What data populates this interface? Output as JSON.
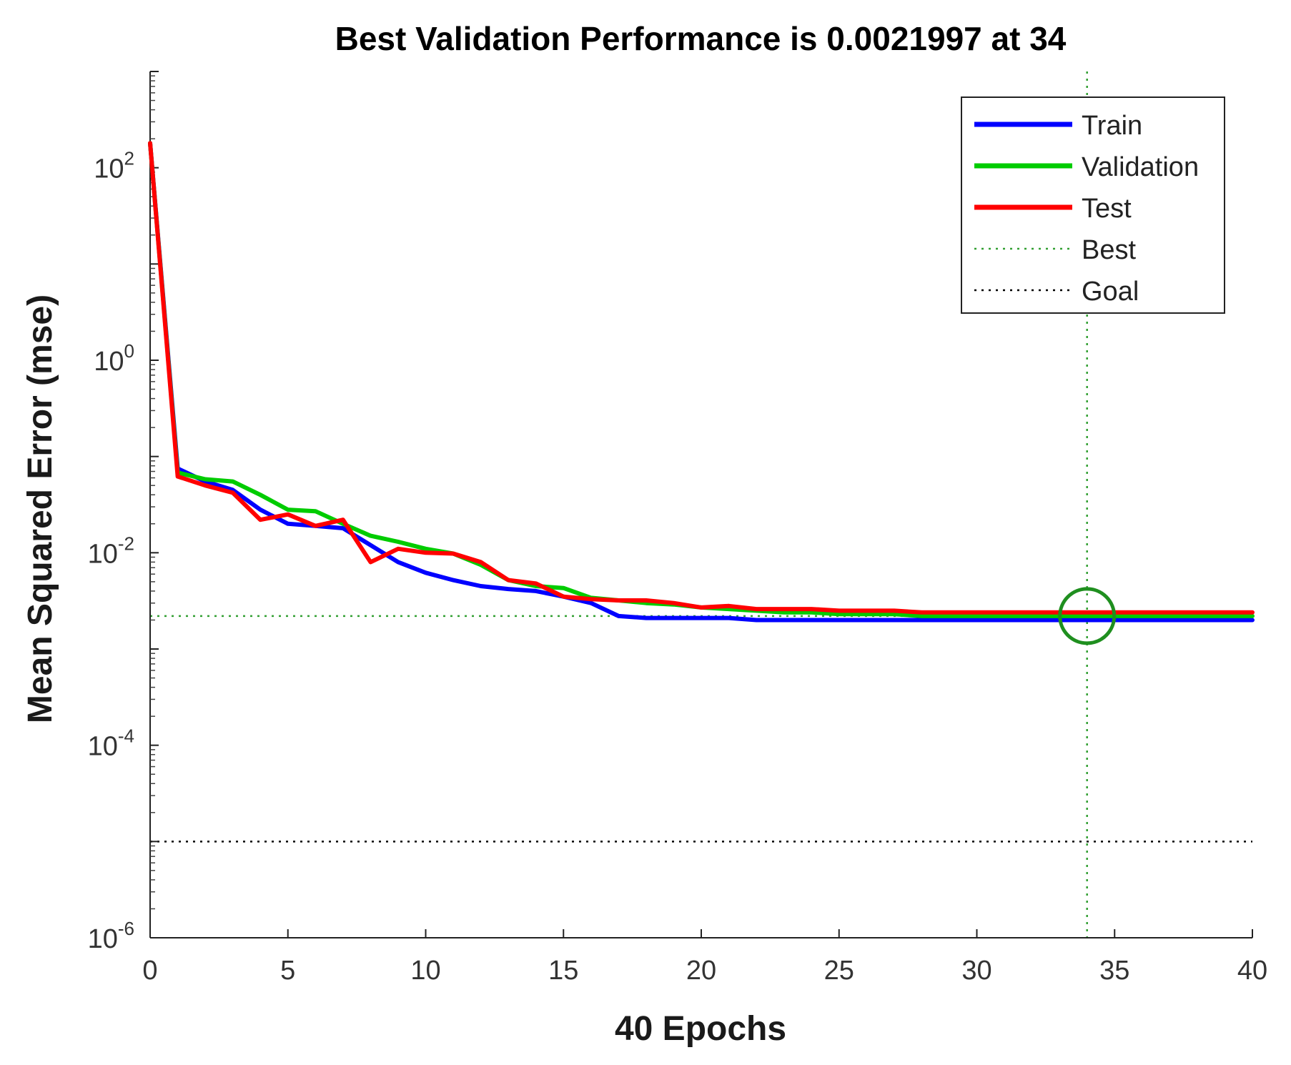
{
  "chart_data": {
    "type": "line",
    "title": "Best Validation Performance is 0.0021997 at 34",
    "xlabel": "40 Epochs",
    "ylabel": "Mean Squared Error  (mse)",
    "xlim": [
      0,
      40
    ],
    "ylim_log10": [
      -6,
      3
    ],
    "y_scale": "log",
    "xticks": [
      0,
      5,
      10,
      15,
      20,
      25,
      30,
      35,
      40
    ],
    "xtick_labels": [
      "0",
      "5",
      "10",
      "15",
      "20",
      "25",
      "30",
      "35",
      "40"
    ],
    "yticks": [
      {
        "exp": -6,
        "base": "10",
        "sup": "-6"
      },
      {
        "exp": -4,
        "base": "10",
        "sup": "-4"
      },
      {
        "exp": -2,
        "base": "10",
        "sup": "-2"
      },
      {
        "exp": 0,
        "base": "10",
        "sup": "0"
      },
      {
        "exp": 2,
        "base": "10",
        "sup": "2"
      }
    ],
    "x": [
      0,
      1,
      2,
      3,
      4,
      5,
      6,
      7,
      8,
      9,
      10,
      11,
      12,
      13,
      14,
      15,
      16,
      17,
      18,
      19,
      20,
      21,
      22,
      23,
      24,
      25,
      26,
      27,
      28,
      29,
      30,
      31,
      32,
      33,
      34,
      35,
      36,
      37,
      38,
      39,
      40
    ],
    "series": [
      {
        "name": "Train",
        "color": "#0000ff",
        "values": [
          180,
          0.075,
          0.055,
          0.045,
          0.028,
          0.02,
          0.019,
          0.018,
          0.012,
          0.008,
          0.0062,
          0.0052,
          0.0045,
          0.0042,
          0.004,
          0.0035,
          0.003,
          0.0022,
          0.0021,
          0.0021,
          0.0021,
          0.0021,
          0.002,
          0.002,
          0.002,
          0.002,
          0.002,
          0.002,
          0.002,
          0.002,
          0.002,
          0.002,
          0.002,
          0.002,
          0.002,
          0.002,
          0.002,
          0.002,
          0.002,
          0.002,
          0.002
        ]
      },
      {
        "name": "Validation",
        "color": "#00cc00",
        "values": [
          180,
          0.068,
          0.058,
          0.055,
          0.04,
          0.028,
          0.027,
          0.02,
          0.015,
          0.013,
          0.011,
          0.0098,
          0.0075,
          0.0052,
          0.0045,
          0.0043,
          0.0034,
          0.0032,
          0.003,
          0.0029,
          0.0027,
          0.0026,
          0.0025,
          0.0024,
          0.0024,
          0.0023,
          0.0023,
          0.0023,
          0.0022,
          0.0022,
          0.0022,
          0.0022,
          0.0022,
          0.0022,
          0.0022,
          0.0022,
          0.0022,
          0.0022,
          0.0022,
          0.0022,
          0.0022
        ]
      },
      {
        "name": "Test",
        "color": "#ff0000",
        "values": [
          180,
          0.062,
          0.05,
          0.042,
          0.022,
          0.025,
          0.019,
          0.022,
          0.008,
          0.011,
          0.01,
          0.0098,
          0.008,
          0.0052,
          0.0048,
          0.0035,
          0.0033,
          0.0032,
          0.0032,
          0.003,
          0.0027,
          0.0028,
          0.0026,
          0.0026,
          0.0026,
          0.0025,
          0.0025,
          0.0025,
          0.0024,
          0.0024,
          0.0024,
          0.0024,
          0.0024,
          0.0024,
          0.0024,
          0.0024,
          0.0024,
          0.0024,
          0.0024,
          0.0024,
          0.0024
        ]
      }
    ],
    "best": {
      "epoch": 34,
      "value": 0.0021997,
      "label": "Best",
      "color": "#33a033"
    },
    "goal": {
      "value": 1e-05,
      "label": "Goal",
      "color": "#000000"
    },
    "legend": {
      "position": "top-right",
      "entries": [
        {
          "label": "Train",
          "style": "solid",
          "color": "#0000ff"
        },
        {
          "label": "Validation",
          "style": "solid",
          "color": "#00cc00"
        },
        {
          "label": "Test",
          "style": "solid",
          "color": "#ff0000"
        },
        {
          "label": "Best",
          "style": "dotted",
          "color": "#33a033"
        },
        {
          "label": "Goal",
          "style": "dotted",
          "color": "#000000"
        }
      ]
    }
  }
}
